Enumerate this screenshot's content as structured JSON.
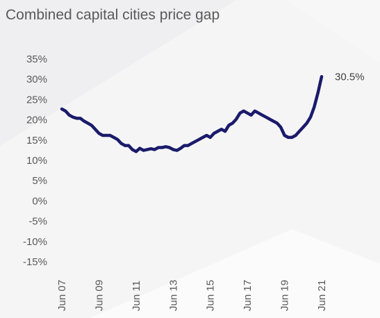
{
  "chart_data": {
    "type": "line",
    "title": "Combined capital cities price gap",
    "xlabel": "",
    "ylabel": "",
    "ylim": [
      -15,
      35
    ],
    "yticks": [
      35,
      30,
      25,
      20,
      15,
      10,
      5,
      0,
      -5,
      -10,
      -15
    ],
    "ytick_labels": [
      "35%",
      "30%",
      "25%",
      "20%",
      "15%",
      "10%",
      "5%",
      "0%",
      "-5%",
      "-10%",
      "-15%"
    ],
    "xtick_labels": [
      "Jun 07",
      "Jun 09",
      "Jun 11",
      "Jun 13",
      "Jun 15",
      "Jun 17",
      "Jun 19",
      "Jun 21"
    ],
    "xtick_years": [
      2007.5,
      2009.5,
      2011.5,
      2013.5,
      2015.5,
      2017.5,
      2019.5,
      2021.5
    ],
    "grid": false,
    "legend": "none",
    "line_color": "#1b1b6b",
    "end_label": "30.5%",
    "series": [
      {
        "x": [
          2007.5,
          2007.7,
          2007.9,
          2008.1,
          2008.3,
          2008.5,
          2008.7,
          2008.9,
          2009.1,
          2009.3,
          2009.5,
          2009.7,
          2009.9,
          2010.1,
          2010.3,
          2010.5,
          2010.7,
          2010.9,
          2011.1,
          2011.3,
          2011.5,
          2011.7,
          2011.9,
          2012.1,
          2012.3,
          2012.5,
          2012.7,
          2012.9,
          2013.1,
          2013.3,
          2013.5,
          2013.7,
          2013.9,
          2014.1,
          2014.3,
          2014.5,
          2014.7,
          2014.9,
          2015.1,
          2015.3,
          2015.5,
          2015.7,
          2015.9,
          2016.1,
          2016.3,
          2016.5,
          2016.7,
          2016.9,
          2017.1,
          2017.3,
          2017.5,
          2017.7,
          2017.9,
          2018.1,
          2018.3,
          2018.5,
          2018.7,
          2018.9,
          2019.1,
          2019.3,
          2019.5,
          2019.7,
          2019.9,
          2020.1,
          2020.3,
          2020.5,
          2020.7,
          2020.9,
          2021.1,
          2021.3,
          2021.5
        ],
        "y": [
          22.5,
          22.0,
          21.0,
          20.5,
          20.2,
          20.2,
          19.5,
          19.0,
          18.5,
          17.5,
          16.5,
          16.0,
          16.0,
          16.0,
          15.5,
          15.0,
          14.0,
          13.5,
          13.5,
          12.5,
          12.0,
          12.8,
          12.3,
          12.5,
          12.7,
          12.5,
          13.0,
          13.0,
          13.2,
          13.0,
          12.5,
          12.3,
          12.8,
          13.5,
          13.5,
          14.0,
          14.5,
          15.0,
          15.5,
          16.0,
          15.5,
          16.5,
          17.0,
          17.5,
          17.0,
          18.5,
          19.0,
          20.0,
          21.5,
          22.0,
          21.5,
          21.0,
          22.0,
          21.5,
          21.0,
          20.5,
          20.0,
          19.5,
          19.0,
          18.0,
          16.0,
          15.5,
          15.5,
          16.0,
          17.0,
          18.0,
          19.0,
          20.5,
          23.0,
          26.5,
          30.5
        ]
      }
    ]
  }
}
